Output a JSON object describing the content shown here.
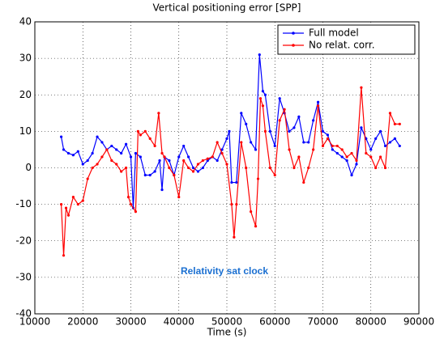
{
  "chart_data": {
    "type": "line",
    "title": "Vertical positioning error [SPP]",
    "x_label": "Time (s)",
    "annotation": "Relativity sat clock",
    "xlim": [
      10000,
      90000
    ],
    "xticks": [
      10000,
      20000,
      30000,
      40000,
      50000,
      60000,
      70000,
      80000,
      90000
    ],
    "ylim": [
      -40,
      40
    ],
    "yticks": [
      -40,
      -30,
      -20,
      -10,
      0,
      10,
      20,
      30,
      40
    ],
    "grid": true,
    "legend": "upper right",
    "series": [
      {
        "name": "Full model",
        "color": "#0000ff",
        "x": [
          15500,
          16000,
          17000,
          18000,
          19000,
          20000,
          21000,
          22000,
          23000,
          24000,
          25000,
          26000,
          27000,
          28000,
          29000,
          30000,
          30500,
          31000,
          32000,
          33000,
          34000,
          35000,
          36000,
          36500,
          37000,
          38000,
          39000,
          40000,
          41000,
          42000,
          43000,
          44000,
          45000,
          46000,
          47000,
          48000,
          49000,
          50000,
          50500,
          51000,
          52000,
          53000,
          54000,
          55000,
          56000,
          56800,
          57500,
          58000,
          59000,
          60000,
          61000,
          62000,
          63000,
          64000,
          65000,
          66000,
          67000,
          68000,
          69000,
          70000,
          71000,
          72000,
          73000,
          74000,
          75000,
          76000,
          77000,
          78000,
          79000,
          80000,
          81000,
          82000,
          83000,
          84000,
          85000,
          86000
        ],
        "values": [
          8.5,
          5,
          4,
          3.5,
          4.5,
          1,
          2,
          4,
          8.5,
          7,
          5,
          6,
          5,
          4,
          6.5,
          3,
          -11,
          4,
          3,
          -2,
          -2,
          -1,
          2,
          -6,
          3,
          2,
          -2,
          3,
          6,
          3,
          0,
          -1,
          0,
          2,
          3,
          2,
          5,
          8,
          10,
          -4,
          -4,
          15,
          12,
          7,
          5,
          31,
          21,
          20,
          10,
          6,
          19,
          15,
          10,
          11,
          14,
          7,
          7,
          13,
          18,
          10,
          9,
          5,
          4,
          3,
          2,
          -2,
          1,
          11,
          8,
          5,
          8,
          10,
          6,
          7,
          8,
          6
        ]
      },
      {
        "name": "No relat. corr.",
        "color": "#ff0000",
        "x": [
          15500,
          16000,
          16500,
          17000,
          18000,
          19000,
          20000,
          21000,
          22000,
          23000,
          24000,
          25000,
          26000,
          27000,
          28000,
          29000,
          29500,
          30000,
          31000,
          31500,
          32000,
          33000,
          34000,
          35000,
          35800,
          36500,
          37000,
          38000,
          39000,
          40000,
          41000,
          42000,
          43000,
          44000,
          45000,
          46000,
          47000,
          48000,
          49000,
          50000,
          51000,
          51500,
          52000,
          53000,
          54000,
          55000,
          56000,
          56500,
          57000,
          57500,
          58000,
          59000,
          60000,
          61000,
          62000,
          63000,
          64000,
          65000,
          66000,
          67000,
          68000,
          69000,
          70000,
          71000,
          72000,
          73000,
          74000,
          75000,
          76000,
          77000,
          78000,
          79000,
          80000,
          81000,
          82000,
          83000,
          84000,
          85000,
          86000
        ],
        "values": [
          -10,
          -24,
          -11,
          -13,
          -8,
          -10,
          -9,
          -3,
          0,
          1,
          3,
          5,
          2,
          1,
          -1,
          0,
          -8,
          -10,
          -12,
          10,
          9,
          10,
          8,
          6,
          15,
          4,
          3,
          0,
          -2,
          -8,
          2,
          0,
          -1,
          1,
          2,
          2.5,
          3,
          7,
          4,
          1,
          -10,
          -19,
          -10,
          7,
          0,
          -12,
          -16,
          -3,
          19,
          17,
          10,
          0,
          -2,
          13,
          16,
          5,
          0,
          3,
          -4,
          0,
          5,
          17,
          6,
          8,
          6,
          6,
          5,
          3,
          4,
          2,
          22,
          4,
          3,
          0,
          3,
          0,
          15,
          12,
          12
        ]
      }
    ]
  }
}
